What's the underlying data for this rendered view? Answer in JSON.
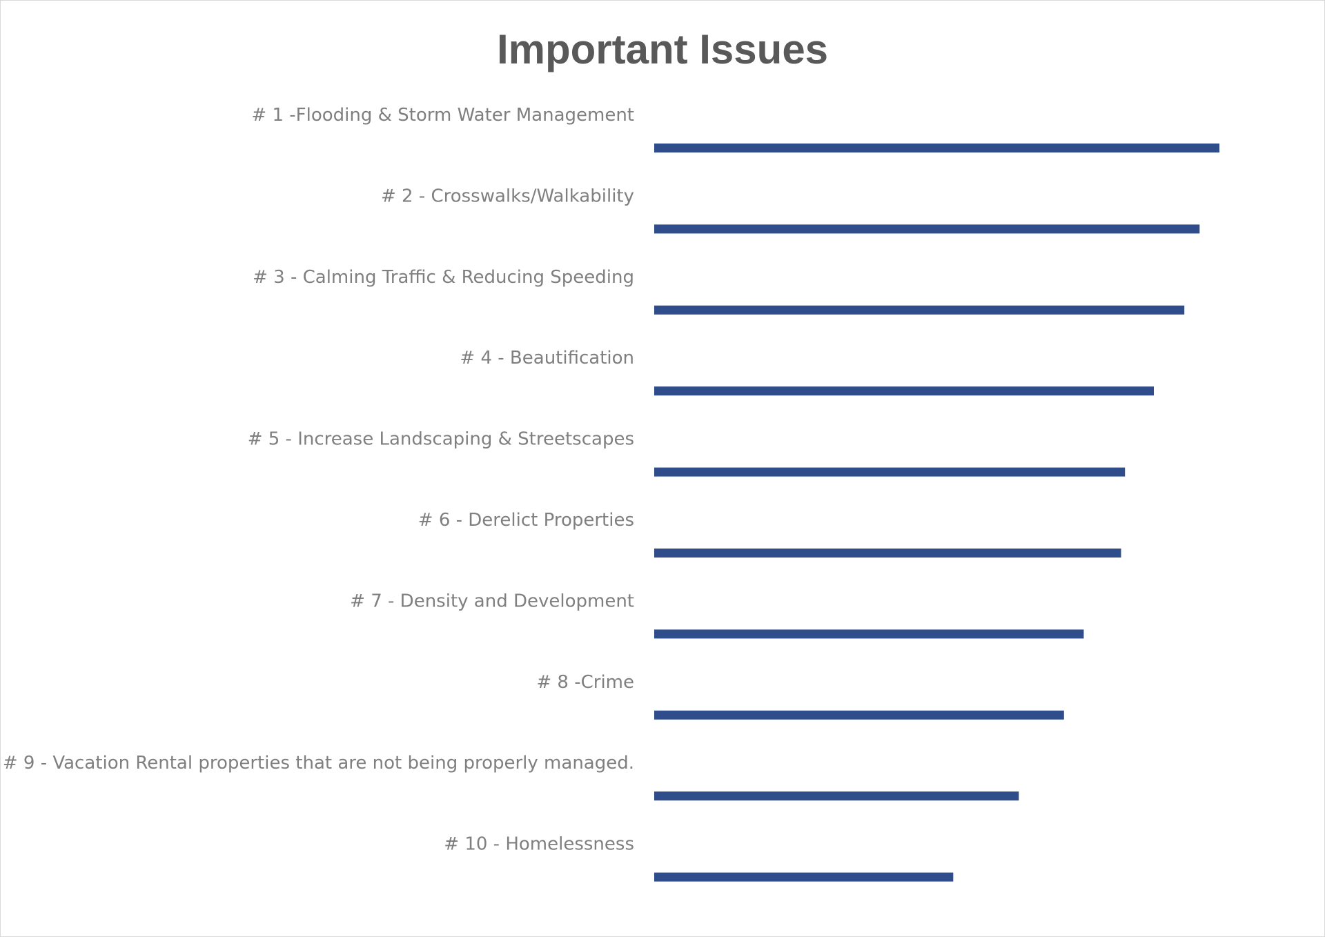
{
  "chart_data": {
    "type": "bar",
    "orientation": "horizontal",
    "title": "Important Issues",
    "xlabel": "",
    "ylabel": "",
    "grid": false,
    "legend": "none",
    "categories": [
      "# 1 -Flooding & Storm Water Management",
      "# 2 - Crosswalks/Walkability",
      "# 3 - Calming Traffic & Reducing Speeding",
      "# 4 - Beautification",
      "# 5 - Increase Landscaping & Streetscapes",
      "# 6 - Derelict Properties",
      "# 7 - Density and Development",
      "# 8 -Crime",
      "# 9 - Vacation Rental properties that are not being properly managed.",
      "# 10 - Homelessness"
    ],
    "values": [
      100,
      96.5,
      93.8,
      88.4,
      83.3,
      82.6,
      76,
      72.5,
      64.5,
      52.9
    ],
    "xlim": [
      0,
      100
    ],
    "bar_color": "#2e4d8a"
  }
}
